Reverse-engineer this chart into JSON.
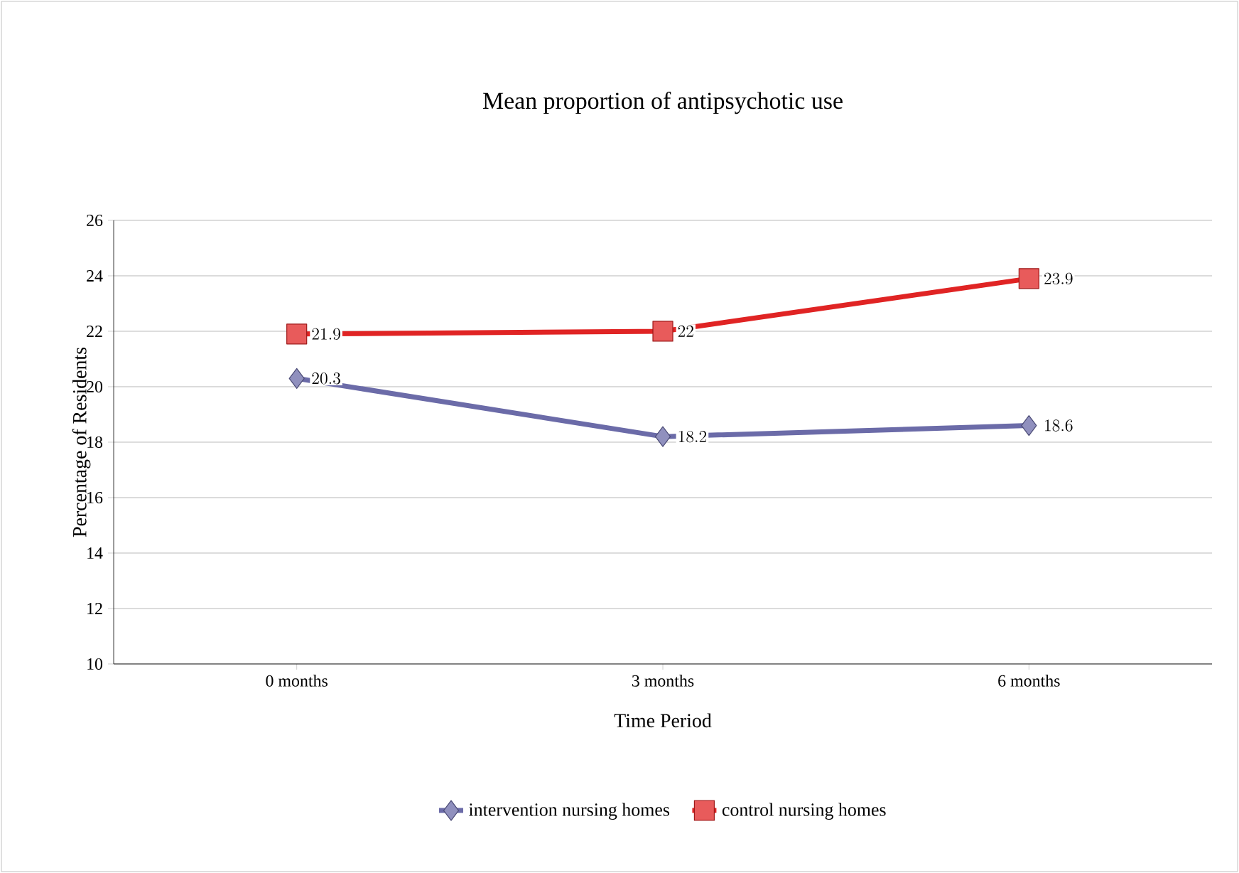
{
  "chart_data": {
    "type": "line",
    "title": "Mean proportion of antipsychotic use",
    "xlabel": "Time Period",
    "ylabel": "Percentage of Residents",
    "categories": [
      "0 months",
      "3 months",
      "6 months"
    ],
    "series": [
      {
        "name": "intervention nursing homes",
        "color": "#6b6ba8",
        "marker": "diamond",
        "values": [
          20.3,
          18.2,
          18.6
        ]
      },
      {
        "name": "control nursing homes",
        "color": "#e02424",
        "marker": "square",
        "values": [
          21.9,
          22,
          23.9
        ]
      }
    ],
    "ylim": [
      10,
      26
    ],
    "yticks": [
      10,
      12,
      14,
      16,
      18,
      20,
      22,
      24,
      26
    ],
    "grid": "y",
    "legend": "bottom",
    "data_labels": true
  }
}
